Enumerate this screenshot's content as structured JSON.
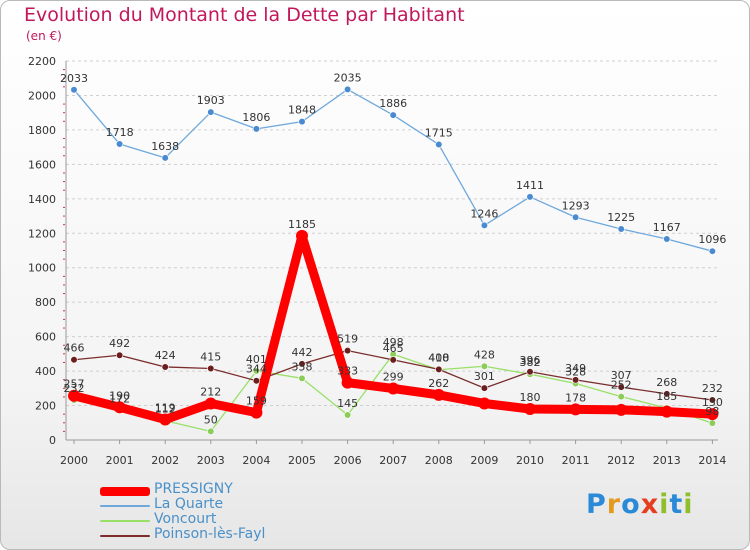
{
  "title": "Evolution du Montant de la Dette par Habitant",
  "subtitle": "(en €)",
  "logo": {
    "letters": [
      {
        "ch": "P",
        "color": "#2b8ad8"
      },
      {
        "ch": "r",
        "color": "#e39a1e"
      },
      {
        "ch": "o",
        "color": "#2b8ad8"
      },
      {
        "ch": "x",
        "color": "#e43d1f"
      },
      {
        "ch": "i",
        "color": "#8fbf2a"
      },
      {
        "ch": "t",
        "color": "#2b8ad8"
      },
      {
        "ch": "i",
        "color": "#8fbf2a"
      }
    ]
  },
  "chart_data": {
    "type": "line",
    "title": "Evolution du Montant de la Dette par Habitant",
    "subtitle": "(en €)",
    "x": [
      "2000",
      "2001",
      "2002",
      "2003",
      "2004",
      "2005",
      "2006",
      "2007",
      "2008",
      "2009",
      "2010",
      "2011",
      "2012",
      "2013",
      "2014"
    ],
    "ylim": [
      0,
      2200
    ],
    "yticks": [
      0,
      200,
      400,
      600,
      800,
      1000,
      1200,
      1400,
      1600,
      1800,
      2000,
      2200
    ],
    "grid": "horizontal dashed",
    "legend_position": "bottom-left",
    "series": [
      {
        "name": "PRESSIGNY",
        "color": "#ff0000",
        "marker": "#ff0000",
        "values": [
          257,
          190,
          119,
          212,
          159,
          1185,
          333,
          299,
          262,
          212,
          180,
          178,
          175,
          165,
          150
        ],
        "labels": [
          "257",
          "190",
          "119",
          "212",
          "159",
          "1185",
          "333",
          "299",
          "262",
          "",
          "180",
          "178",
          "",
          "",
          "150"
        ]
      },
      {
        "name": "La Quarte",
        "color": "#6ea8dc",
        "marker": "#4a8ad0",
        "values": [
          2033,
          1718,
          1638,
          1903,
          1806,
          1848,
          2035,
          1886,
          1715,
          1246,
          1411,
          1293,
          1225,
          1167,
          1096
        ],
        "labels": [
          "2033",
          "1718",
          "1638",
          "1903",
          "1806",
          "1848",
          "2035",
          "1886",
          "1715",
          "1246",
          "1411",
          "1293",
          "1225",
          "1167",
          "1096"
        ]
      },
      {
        "name": "Voncourt",
        "color": "#98e068",
        "marker": "#8ccc5a",
        "values": [
          232,
          172,
          112,
          50,
          401,
          358,
          145,
          498,
          408,
          428,
          382,
          328,
          252,
          185,
          98
        ],
        "labels": [
          "232",
          "172",
          "112",
          "50",
          "401",
          "358",
          "145",
          "498",
          "408",
          "428",
          "382",
          "328",
          "252",
          "185",
          "98"
        ]
      },
      {
        "name": "Poinson-lès-Fayl",
        "color": "#7b2d2d",
        "marker": "#6a1e1e",
        "values": [
          466,
          492,
          424,
          415,
          344,
          442,
          519,
          465,
          410,
          301,
          396,
          349,
          307,
          268,
          232
        ],
        "labels": [
          "466",
          "492",
          "424",
          "415",
          "344",
          "442",
          "519",
          "465",
          "410",
          "301",
          "396",
          "349",
          "307",
          "268",
          "232"
        ]
      }
    ]
  }
}
